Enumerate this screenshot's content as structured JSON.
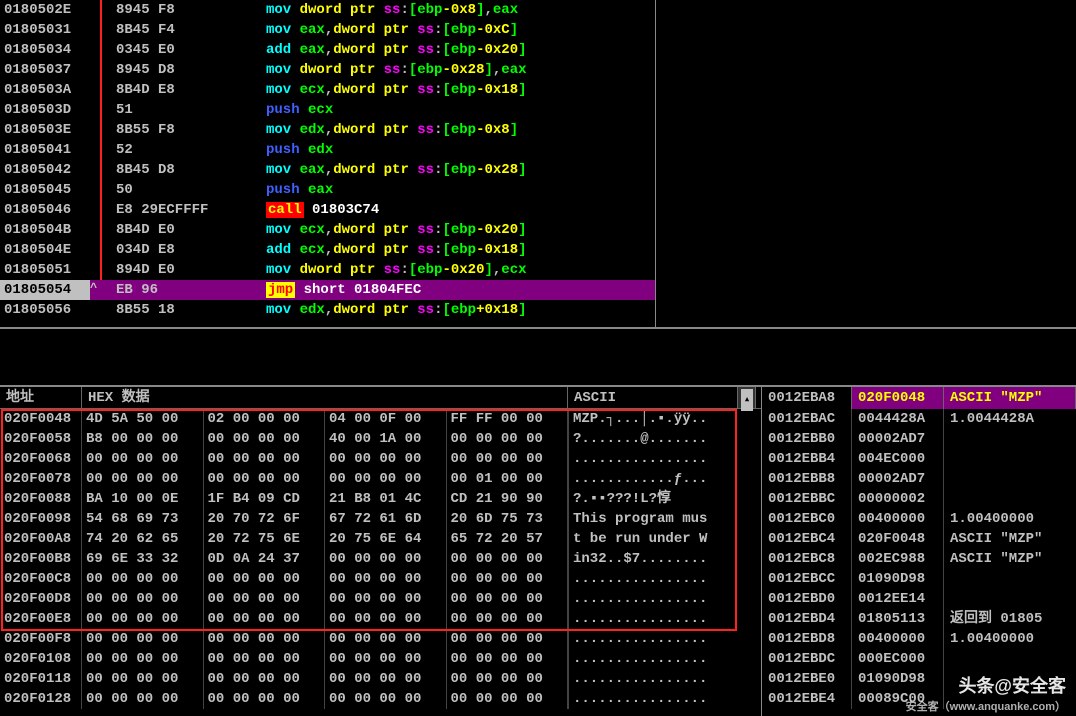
{
  "disasm": {
    "rows": [
      {
        "addr": "0180502E",
        "bytes": "8945 F8",
        "tokens": [
          {
            "t": "mn",
            "v": "mov "
          },
          {
            "t": "lit",
            "v": "dword ptr "
          },
          {
            "t": "seg",
            "v": "ss"
          },
          {
            "t": "punct",
            "v": ":"
          },
          {
            "t": "brk",
            "v": "["
          },
          {
            "t": "reg",
            "v": "ebp"
          },
          {
            "t": "lit",
            "v": "-0x8"
          },
          {
            "t": "brk",
            "v": "]"
          },
          {
            "t": "punct",
            "v": ","
          },
          {
            "t": "reg",
            "v": "eax"
          }
        ],
        "markRed": true
      },
      {
        "addr": "01805031",
        "bytes": "8B45 F4",
        "tokens": [
          {
            "t": "mn",
            "v": "mov "
          },
          {
            "t": "reg",
            "v": "eax"
          },
          {
            "t": "punct",
            "v": ","
          },
          {
            "t": "lit",
            "v": "dword ptr "
          },
          {
            "t": "seg",
            "v": "ss"
          },
          {
            "t": "punct",
            "v": ":"
          },
          {
            "t": "brk",
            "v": "["
          },
          {
            "t": "reg",
            "v": "ebp"
          },
          {
            "t": "lit",
            "v": "-0xC"
          },
          {
            "t": "brk",
            "v": "]"
          }
        ],
        "markRed": true
      },
      {
        "addr": "01805034",
        "bytes": "0345 E0",
        "tokens": [
          {
            "t": "mn",
            "v": "add "
          },
          {
            "t": "reg",
            "v": "eax"
          },
          {
            "t": "punct",
            "v": ","
          },
          {
            "t": "lit",
            "v": "dword ptr "
          },
          {
            "t": "seg",
            "v": "ss"
          },
          {
            "t": "punct",
            "v": ":"
          },
          {
            "t": "brk",
            "v": "["
          },
          {
            "t": "reg",
            "v": "ebp"
          },
          {
            "t": "lit",
            "v": "-0x20"
          },
          {
            "t": "brk",
            "v": "]"
          }
        ],
        "markRed": true
      },
      {
        "addr": "01805037",
        "bytes": "8945 D8",
        "tokens": [
          {
            "t": "mn",
            "v": "mov "
          },
          {
            "t": "lit",
            "v": "dword ptr "
          },
          {
            "t": "seg",
            "v": "ss"
          },
          {
            "t": "punct",
            "v": ":"
          },
          {
            "t": "brk",
            "v": "["
          },
          {
            "t": "reg",
            "v": "ebp"
          },
          {
            "t": "lit",
            "v": "-0x28"
          },
          {
            "t": "brk",
            "v": "]"
          },
          {
            "t": "punct",
            "v": ","
          },
          {
            "t": "reg",
            "v": "eax"
          }
        ],
        "markRed": true
      },
      {
        "addr": "0180503A",
        "bytes": "8B4D E8",
        "tokens": [
          {
            "t": "mn",
            "v": "mov "
          },
          {
            "t": "reg",
            "v": "ecx"
          },
          {
            "t": "punct",
            "v": ","
          },
          {
            "t": "lit",
            "v": "dword ptr "
          },
          {
            "t": "seg",
            "v": "ss"
          },
          {
            "t": "punct",
            "v": ":"
          },
          {
            "t": "brk",
            "v": "["
          },
          {
            "t": "reg",
            "v": "ebp"
          },
          {
            "t": "lit",
            "v": "-0x18"
          },
          {
            "t": "brk",
            "v": "]"
          }
        ],
        "markRed": true
      },
      {
        "addr": "0180503D",
        "bytes": "51",
        "tokens": [
          {
            "t": "mn-push",
            "v": "push "
          },
          {
            "t": "reg",
            "v": "ecx"
          }
        ],
        "markRed": true
      },
      {
        "addr": "0180503E",
        "bytes": "8B55 F8",
        "tokens": [
          {
            "t": "mn",
            "v": "mov "
          },
          {
            "t": "reg",
            "v": "edx"
          },
          {
            "t": "punct",
            "v": ","
          },
          {
            "t": "lit",
            "v": "dword ptr "
          },
          {
            "t": "seg",
            "v": "ss"
          },
          {
            "t": "punct",
            "v": ":"
          },
          {
            "t": "brk",
            "v": "["
          },
          {
            "t": "reg",
            "v": "ebp"
          },
          {
            "t": "lit",
            "v": "-0x8"
          },
          {
            "t": "brk",
            "v": "]"
          }
        ],
        "markRed": true
      },
      {
        "addr": "01805041",
        "bytes": "52",
        "tokens": [
          {
            "t": "mn-push",
            "v": "push "
          },
          {
            "t": "reg",
            "v": "edx"
          }
        ],
        "markRed": true
      },
      {
        "addr": "01805042",
        "bytes": "8B45 D8",
        "tokens": [
          {
            "t": "mn",
            "v": "mov "
          },
          {
            "t": "reg",
            "v": "eax"
          },
          {
            "t": "punct",
            "v": ","
          },
          {
            "t": "lit",
            "v": "dword ptr "
          },
          {
            "t": "seg",
            "v": "ss"
          },
          {
            "t": "punct",
            "v": ":"
          },
          {
            "t": "brk",
            "v": "["
          },
          {
            "t": "reg",
            "v": "ebp"
          },
          {
            "t": "lit",
            "v": "-0x28"
          },
          {
            "t": "brk",
            "v": "]"
          }
        ],
        "markRed": true
      },
      {
        "addr": "01805045",
        "bytes": "50",
        "tokens": [
          {
            "t": "mn-push",
            "v": "push "
          },
          {
            "t": "reg",
            "v": "eax"
          }
        ],
        "markRed": true
      },
      {
        "addr": "01805046",
        "bytes": "E8 29ECFFFF",
        "tokens": [
          {
            "t": "mn-call",
            "v": "call"
          },
          {
            "t": "white",
            "v": " 01803C74"
          }
        ],
        "markRed": true
      },
      {
        "addr": "0180504B",
        "bytes": "8B4D E0",
        "tokens": [
          {
            "t": "mn",
            "v": "mov "
          },
          {
            "t": "reg",
            "v": "ecx"
          },
          {
            "t": "punct",
            "v": ","
          },
          {
            "t": "lit",
            "v": "dword ptr "
          },
          {
            "t": "seg",
            "v": "ss"
          },
          {
            "t": "punct",
            "v": ":"
          },
          {
            "t": "brk",
            "v": "["
          },
          {
            "t": "reg",
            "v": "ebp"
          },
          {
            "t": "lit",
            "v": "-0x20"
          },
          {
            "t": "brk",
            "v": "]"
          }
        ],
        "markRed": true
      },
      {
        "addr": "0180504E",
        "bytes": "034D E8",
        "tokens": [
          {
            "t": "mn",
            "v": "add "
          },
          {
            "t": "reg",
            "v": "ecx"
          },
          {
            "t": "punct",
            "v": ","
          },
          {
            "t": "lit",
            "v": "dword ptr "
          },
          {
            "t": "seg",
            "v": "ss"
          },
          {
            "t": "punct",
            "v": ":"
          },
          {
            "t": "brk",
            "v": "["
          },
          {
            "t": "reg",
            "v": "ebp"
          },
          {
            "t": "lit",
            "v": "-0x18"
          },
          {
            "t": "brk",
            "v": "]"
          }
        ],
        "markRed": true
      },
      {
        "addr": "01805051",
        "bytes": "894D E0",
        "tokens": [
          {
            "t": "mn",
            "v": "mov "
          },
          {
            "t": "lit",
            "v": "dword ptr "
          },
          {
            "t": "seg",
            "v": "ss"
          },
          {
            "t": "punct",
            "v": ":"
          },
          {
            "t": "brk",
            "v": "["
          },
          {
            "t": "reg",
            "v": "ebp"
          },
          {
            "t": "lit",
            "v": "-0x20"
          },
          {
            "t": "brk",
            "v": "]"
          },
          {
            "t": "punct",
            "v": ","
          },
          {
            "t": "reg",
            "v": "ecx"
          }
        ],
        "markRed": true
      },
      {
        "addr": "01805054",
        "bytes": "EB 96",
        "tokens": [
          {
            "t": "mn-jmp",
            "v": "jmp"
          },
          {
            "t": "white",
            "v": " short 01804FEC"
          }
        ],
        "selected": true,
        "caret": true
      },
      {
        "addr": "01805056",
        "bytes": "8B55 18",
        "tokens": [
          {
            "t": "mn",
            "v": "mov "
          },
          {
            "t": "reg",
            "v": "edx"
          },
          {
            "t": "punct",
            "v": ","
          },
          {
            "t": "lit",
            "v": "dword ptr "
          },
          {
            "t": "seg",
            "v": "ss"
          },
          {
            "t": "punct",
            "v": ":"
          },
          {
            "t": "brk",
            "v": "["
          },
          {
            "t": "reg",
            "v": "ebp"
          },
          {
            "t": "lit",
            "v": "+0x18"
          },
          {
            "t": "brk",
            "v": "]"
          }
        ]
      }
    ]
  },
  "dump": {
    "header": {
      "addr": "地址",
      "hex": "HEX 数据",
      "ascii": "ASCII"
    },
    "rows": [
      {
        "addr": "020F0048",
        "g": [
          "4D 5A 50 00",
          "02 00 00 00",
          "04 00 0F 00",
          "FF FF 00 00"
        ],
        "ascii": "MZP.┐...│.▪.ÿÿ.."
      },
      {
        "addr": "020F0058",
        "g": [
          "B8 00 00 00",
          "00 00 00 00",
          "40 00 1A 00",
          "00 00 00 00"
        ],
        "ascii": "?.......@......."
      },
      {
        "addr": "020F0068",
        "g": [
          "00 00 00 00",
          "00 00 00 00",
          "00 00 00 00",
          "00 00 00 00"
        ],
        "ascii": "................"
      },
      {
        "addr": "020F0078",
        "g": [
          "00 00 00 00",
          "00 00 00 00",
          "00 00 00 00",
          "00 01 00 00"
        ],
        "ascii": "............ƒ..."
      },
      {
        "addr": "020F0088",
        "g": [
          "BA 10 00 0E",
          "1F B4 09 CD",
          "21 B8 01 4C",
          "CD 21 90 90"
        ],
        "ascii": "?.▪▪???!L?惇"
      },
      {
        "addr": "020F0098",
        "g": [
          "54 68 69 73",
          "20 70 72 6F",
          "67 72 61 6D",
          "20 6D 75 73"
        ],
        "ascii": "This program mus"
      },
      {
        "addr": "020F00A8",
        "g": [
          "74 20 62 65",
          "20 72 75 6E",
          "20 75 6E 64",
          "65 72 20 57"
        ],
        "ascii": "t be run under W"
      },
      {
        "addr": "020F00B8",
        "g": [
          "69 6E 33 32",
          "0D 0A 24 37",
          "00 00 00 00",
          "00 00 00 00"
        ],
        "ascii": "in32..$7........"
      },
      {
        "addr": "020F00C8",
        "g": [
          "00 00 00 00",
          "00 00 00 00",
          "00 00 00 00",
          "00 00 00 00"
        ],
        "ascii": "................"
      },
      {
        "addr": "020F00D8",
        "g": [
          "00 00 00 00",
          "00 00 00 00",
          "00 00 00 00",
          "00 00 00 00"
        ],
        "ascii": "................"
      },
      {
        "addr": "020F00E8",
        "g": [
          "00 00 00 00",
          "00 00 00 00",
          "00 00 00 00",
          "00 00 00 00"
        ],
        "ascii": "................"
      },
      {
        "addr": "020F00F8",
        "g": [
          "00 00 00 00",
          "00 00 00 00",
          "00 00 00 00",
          "00 00 00 00"
        ],
        "ascii": "................"
      },
      {
        "addr": "020F0108",
        "g": [
          "00 00 00 00",
          "00 00 00 00",
          "00 00 00 00",
          "00 00 00 00"
        ],
        "ascii": "................"
      },
      {
        "addr": "020F0118",
        "g": [
          "00 00 00 00",
          "00 00 00 00",
          "00 00 00 00",
          "00 00 00 00"
        ],
        "ascii": "................"
      },
      {
        "addr": "020F0128",
        "g": [
          "00 00 00 00",
          "00 00 00 00",
          "00 00 00 00",
          "00 00 00 00"
        ],
        "ascii": "................"
      }
    ],
    "highlight_count": 11
  },
  "stack": {
    "header": {
      "addr": "0012EBA8",
      "val": "020F0048",
      "cmt": "ASCII \"MZP\""
    },
    "rows": [
      {
        "addr": "0012EBAC",
        "val": "0044428A",
        "cmt": "1.0044428A"
      },
      {
        "addr": "0012EBB0",
        "val": "00002AD7",
        "cmt": ""
      },
      {
        "addr": "0012EBB4",
        "val": "004EC000",
        "cmt": ""
      },
      {
        "addr": "0012EBB8",
        "val": "00002AD7",
        "cmt": ""
      },
      {
        "addr": "0012EBBC",
        "val": "00000002",
        "cmt": ""
      },
      {
        "addr": "0012EBC0",
        "val": "00400000",
        "cmt": "1.00400000"
      },
      {
        "addr": "0012EBC4",
        "val": "020F0048",
        "cmt": "ASCII \"MZP\""
      },
      {
        "addr": "0012EBC8",
        "val": "002EC988",
        "cmt": "ASCII \"MZP\""
      },
      {
        "addr": "0012EBCC",
        "val": "01090D98",
        "cmt": ""
      },
      {
        "addr": "0012EBD0",
        "val": "0012EE14",
        "cmt": ""
      },
      {
        "addr": "0012EBD4",
        "val": "01805113",
        "cmt": "返回到 01805"
      },
      {
        "addr": "0012EBD8",
        "val": "00400000",
        "cmt": "1.00400000"
      },
      {
        "addr": "0012EBDC",
        "val": "000EC000",
        "cmt": ""
      },
      {
        "addr": "0012EBE0",
        "val": "01090D98",
        "cmt": ""
      },
      {
        "addr": "0012EBE4",
        "val": "00089C00",
        "cmt": ""
      }
    ]
  },
  "watermark": {
    "main": "头条@安全客",
    "sub": "安全客（www.anquanke.com）"
  }
}
